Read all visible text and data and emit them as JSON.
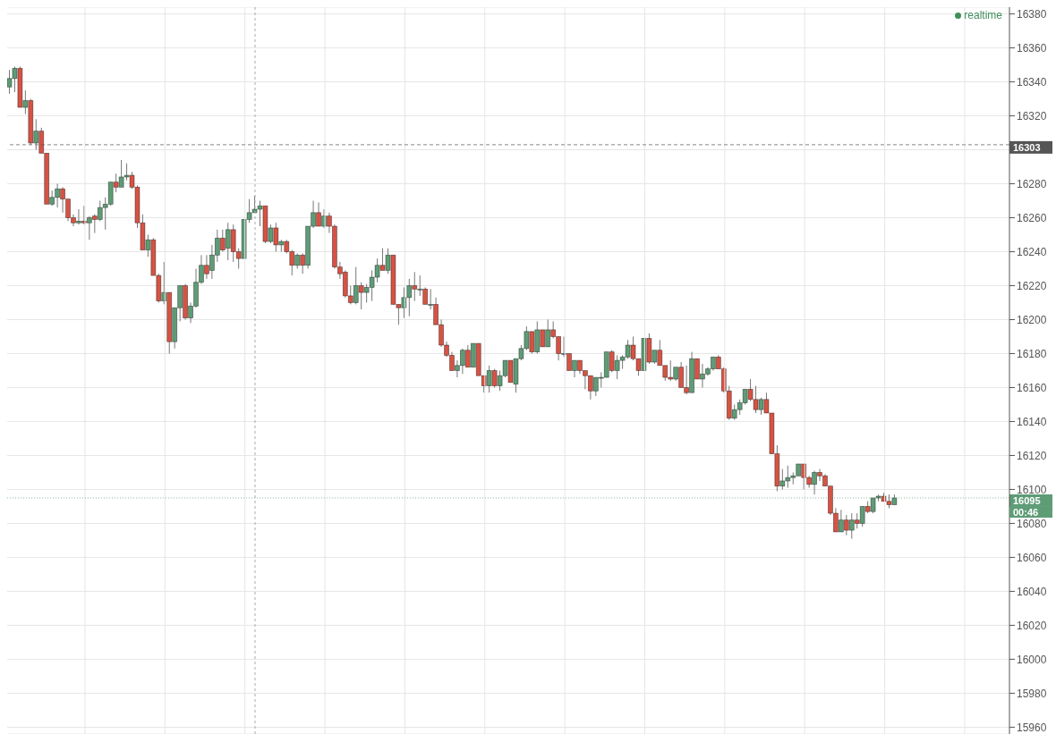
{
  "chart_data": {
    "type": "candlestick",
    "categories": [
      null,
      null,
      null,
      null,
      null,
      null,
      null,
      null,
      null,
      null,
      null,
      null,
      null,
      null,
      null,
      null,
      null,
      null,
      null,
      null,
      null,
      null,
      null,
      null,
      null,
      null,
      null,
      null,
      null,
      null,
      null,
      null,
      null,
      null,
      null,
      null,
      null,
      null,
      null,
      null,
      null,
      null,
      null,
      null,
      null,
      null,
      null,
      null,
      null,
      null,
      null,
      null,
      null,
      null,
      null,
      null,
      null,
      null,
      null,
      null,
      null,
      null,
      null,
      null,
      null,
      null,
      null,
      null,
      null,
      null,
      null,
      null,
      null,
      null,
      null,
      null,
      null,
      null,
      null,
      null,
      null,
      null,
      null,
      null,
      null,
      null,
      null,
      null,
      null,
      null,
      null,
      null,
      null,
      null,
      null,
      null,
      null,
      null,
      null,
      null,
      null,
      null,
      null,
      null,
      null,
      null,
      null,
      null,
      null,
      null,
      null,
      null,
      null,
      null,
      null,
      null,
      null,
      null,
      null,
      null,
      null,
      null,
      null,
      null,
      null,
      null,
      null,
      null,
      null,
      null,
      null,
      null,
      null,
      null,
      null,
      null,
      null,
      null,
      null,
      null,
      null,
      null,
      null,
      null,
      null,
      null,
      null,
      null,
      null,
      null,
      null,
      null,
      null,
      null,
      null,
      null,
      null,
      null,
      null,
      null,
      null,
      null,
      null,
      null,
      null,
      null,
      null,
      null,
      null,
      null,
      null,
      null,
      null,
      null,
      null,
      null,
      null,
      null,
      null,
      null,
      null,
      null,
      null,
      null,
      null,
      null,
      null,
      null
    ],
    "ohlc": [
      [
        16337,
        16347,
        16333,
        16342
      ],
      [
        16342,
        16349,
        16334,
        16348
      ],
      [
        16348,
        16349,
        16325,
        16325
      ],
      [
        16325,
        16335,
        16321,
        16329
      ],
      [
        16329,
        16330,
        16303,
        16304
      ],
      [
        16304,
        16318,
        16300,
        16311
      ],
      [
        16311,
        16313,
        16298,
        16298
      ],
      [
        16298,
        16298,
        16268,
        16268
      ],
      [
        16268,
        16276,
        16267,
        16272
      ],
      [
        16272,
        16280,
        16266,
        16277
      ],
      [
        16277,
        16278,
        16263,
        16271
      ],
      [
        16271,
        16271,
        16258,
        16260
      ],
      [
        16260,
        16262,
        16255,
        16257
      ],
      [
        16257,
        16265,
        16256,
        16258
      ],
      [
        16258,
        16267,
        16256,
        16257
      ],
      [
        16257,
        16261,
        16247,
        16260
      ],
      [
        16261,
        16262,
        16251,
        16259
      ],
      [
        16259,
        16270,
        16258,
        16266
      ],
      [
        16266,
        16272,
        16253,
        16268
      ],
      [
        16268,
        16281,
        16267,
        16281
      ],
      [
        16281,
        16286,
        16275,
        16278
      ],
      [
        16278,
        16294,
        16278,
        16284
      ],
      [
        16284,
        16292,
        16282,
        16285
      ],
      [
        16285,
        16287,
        16277,
        16278
      ],
      [
        16278,
        16279,
        16254,
        16257
      ],
      [
        16257,
        16262,
        16241,
        16241
      ],
      [
        16241,
        16250,
        16237,
        16247
      ],
      [
        16247,
        16248,
        16226,
        16226
      ],
      [
        16226,
        16227,
        16210,
        16211
      ],
      [
        16211,
        16234,
        16209,
        16216
      ],
      [
        16216,
        16216,
        16180,
        16187
      ],
      [
        16187,
        16207,
        16183,
        16207
      ],
      [
        16207,
        16220,
        16199,
        16220
      ],
      [
        16220,
        16221,
        16200,
        16201
      ],
      [
        16201,
        16210,
        16198,
        16208
      ],
      [
        16208,
        16230,
        16207,
        16222
      ],
      [
        16222,
        16238,
        16221,
        16232
      ],
      [
        16232,
        16238,
        16224,
        16227
      ],
      [
        16229,
        16244,
        16224,
        16238
      ],
      [
        16238,
        16253,
        16234,
        16248
      ],
      [
        16248,
        16253,
        16240,
        16241
      ],
      [
        16242,
        16257,
        16235,
        16253
      ],
      [
        16253,
        16256,
        16234,
        16240
      ],
      [
        16240,
        16242,
        16230,
        16236
      ],
      [
        16236,
        16259,
        16236,
        16259
      ],
      [
        16259,
        16271,
        16257,
        16263
      ],
      [
        16263,
        16273,
        16263,
        16265
      ],
      [
        16265,
        16270,
        16255,
        16267
      ],
      [
        16267,
        16267,
        16245,
        16246
      ],
      [
        16246,
        16256,
        16245,
        16254
      ],
      [
        16254,
        16257,
        16240,
        16244
      ],
      [
        16244,
        16247,
        16240,
        16246
      ],
      [
        16246,
        16247,
        16239,
        16240
      ],
      [
        16240,
        16241,
        16226,
        16232
      ],
      [
        16232,
        16239,
        16230,
        16238
      ],
      [
        16238,
        16239,
        16227,
        16232
      ],
      [
        16232,
        16255,
        16230,
        16255
      ],
      [
        16255,
        16270,
        16254,
        16263
      ],
      [
        16263,
        16269,
        16255,
        16255
      ],
      [
        16255,
        16265,
        16254,
        16261
      ],
      [
        16261,
        16263,
        16251,
        16255
      ],
      [
        16255,
        16256,
        16230,
        16231
      ],
      [
        16231,
        16234,
        16224,
        16227
      ],
      [
        16228,
        16229,
        16213,
        16214
      ],
      [
        16214,
        16220,
        16209,
        16210
      ],
      [
        16210,
        16231,
        16209,
        16220
      ],
      [
        16220,
        16222,
        16206,
        16216
      ],
      [
        16216,
        16221,
        16210,
        16219
      ],
      [
        16219,
        16229,
        16211,
        16225
      ],
      [
        16225,
        16236,
        16222,
        16232
      ],
      [
        16232,
        16242,
        16229,
        16229
      ],
      [
        16229,
        16242,
        16227,
        16238
      ],
      [
        16238,
        16238,
        16209,
        16209
      ],
      [
        16209,
        16209,
        16197,
        16207
      ],
      [
        16207,
        16219,
        16201,
        16213
      ],
      [
        16213,
        16224,
        16202,
        16220
      ],
      [
        16220,
        16228,
        16211,
        16218
      ],
      [
        16218,
        16226,
        16214,
        16218
      ],
      [
        16218,
        16219,
        16209,
        16209
      ],
      [
        16209,
        16218,
        16206,
        16209
      ],
      [
        16209,
        16213,
        16197,
        16197
      ],
      [
        16197,
        16200,
        16184,
        16185
      ],
      [
        16185,
        16187,
        16178,
        16179
      ],
      [
        16179,
        16181,
        16170,
        16170
      ],
      [
        16170,
        16176,
        16166,
        16173
      ],
      [
        16173,
        16183,
        16168,
        16182
      ],
      [
        16182,
        16185,
        16172,
        16172
      ],
      [
        16172,
        16186,
        16172,
        16186
      ],
      [
        16186,
        16186,
        16167,
        16167
      ],
      [
        16167,
        16167,
        16157,
        16161
      ],
      [
        16161,
        16173,
        16157,
        16170
      ],
      [
        16170,
        16171,
        16160,
        16161
      ],
      [
        16161,
        16170,
        16158,
        16167
      ],
      [
        16167,
        16176,
        16166,
        16176
      ],
      [
        16176,
        16176,
        16163,
        16163
      ],
      [
        16162,
        16177,
        16157,
        16177
      ],
      [
        16177,
        16185,
        16176,
        16183
      ],
      [
        16183,
        16196,
        16182,
        16193
      ],
      [
        16193,
        16193,
        16180,
        16181
      ],
      [
        16181,
        16199,
        16180,
        16194
      ],
      [
        16194,
        16194,
        16184,
        16184
      ],
      [
        16184,
        16200,
        16184,
        16194
      ],
      [
        16194,
        16199,
        16189,
        16190
      ],
      [
        16190,
        16190,
        16176,
        16180
      ],
      [
        16180,
        16190,
        16178,
        16180
      ],
      [
        16180,
        16180,
        16170,
        16170
      ],
      [
        16170,
        16176,
        16166,
        16176
      ],
      [
        16176,
        16176,
        16168,
        16170
      ],
      [
        16170,
        16170,
        16159,
        16167
      ],
      [
        16167,
        16167,
        16153,
        16158
      ],
      [
        16158,
        16166,
        16155,
        16166
      ],
      [
        16166,
        16169,
        16160,
        16166
      ],
      [
        16166,
        16181,
        16166,
        16181
      ],
      [
        16181,
        16182,
        16169,
        16170
      ],
      [
        16170,
        16179,
        16165,
        16176
      ],
      [
        16176,
        16179,
        16171,
        16178
      ],
      [
        16178,
        16188,
        16177,
        16185
      ],
      [
        16185,
        16190,
        16176,
        16177
      ],
      [
        16177,
        16177,
        16167,
        16170
      ],
      [
        16170,
        16189,
        16170,
        16189
      ],
      [
        16189,
        16192,
        16174,
        16175
      ],
      [
        16175,
        16182,
        16174,
        16182
      ],
      [
        16182,
        16188,
        16173,
        16173
      ],
      [
        16173,
        16173,
        16164,
        16166
      ],
      [
        16166,
        16176,
        16164,
        16165
      ],
      [
        16165,
        16172,
        16164,
        16172
      ],
      [
        16172,
        16175,
        16160,
        16160
      ],
      [
        16160,
        16173,
        16156,
        16157
      ],
      [
        16157,
        16181,
        16157,
        16177
      ],
      [
        16177,
        16177,
        16165,
        16165
      ],
      [
        16165,
        16174,
        16160,
        16168
      ],
      [
        16168,
        16172,
        16167,
        16171
      ],
      [
        16171,
        16178,
        16170,
        16178
      ],
      [
        16178,
        16179,
        16171,
        16171
      ],
      [
        16171,
        16172,
        16157,
        16158
      ],
      [
        16158,
        16161,
        16141,
        16142
      ],
      [
        16142,
        16150,
        16141,
        16147
      ],
      [
        16147,
        16153,
        16144,
        16151
      ],
      [
        16151,
        16159,
        16150,
        16159
      ],
      [
        16159,
        16165,
        16152,
        16153
      ],
      [
        16153,
        16161,
        16145,
        16147
      ],
      [
        16147,
        16154,
        16144,
        16153
      ],
      [
        16153,
        16157,
        16145,
        16145
      ],
      [
        16145,
        16145,
        16121,
        16121
      ],
      [
        16121,
        16126,
        16099,
        16102
      ],
      [
        16102,
        16112,
        16100,
        16105
      ],
      [
        16105,
        16114,
        16101,
        16107
      ],
      [
        16107,
        16110,
        16103,
        16108
      ],
      [
        16108,
        16115,
        16108,
        16115
      ],
      [
        16115,
        16115,
        16100,
        16107
      ],
      [
        16107,
        16108,
        16101,
        16103
      ],
      [
        16103,
        16111,
        16097,
        16110
      ],
      [
        16110,
        16112,
        16105,
        16108
      ],
      [
        16108,
        16109,
        16102,
        16102
      ],
      [
        16102,
        16102,
        16085,
        16086
      ],
      [
        16086,
        16089,
        16075,
        16075
      ],
      [
        16075,
        16088,
        16075,
        16082
      ],
      [
        16082,
        16085,
        16073,
        16076
      ],
      [
        16076,
        16086,
        16071,
        16082
      ],
      [
        16082,
        16086,
        16077,
        16080
      ],
      [
        16080,
        16090,
        16078,
        16090
      ],
      [
        16090,
        16093,
        16086,
        16087
      ],
      [
        16087,
        16095,
        16086,
        16095
      ],
      [
        16095,
        16097,
        16093,
        16096
      ],
      [
        16096,
        16098,
        16093,
        16093
      ],
      [
        16093,
        16097,
        16089,
        16091
      ],
      [
        16091,
        16097,
        16091,
        16095
      ],
      null,
      null,
      null,
      null,
      null,
      null,
      null,
      null,
      null,
      null,
      null,
      null,
      null,
      null,
      null,
      null,
      null,
      null,
      null,
      null,
      null
    ],
    "colors": [
      "#5e9c76",
      "#5e9c76",
      "#d65344",
      "#5e9c76",
      "#d65344",
      "#5e9c76",
      "#d65344",
      "#d65344",
      "#5e9c76",
      "#5e9c76",
      "#d65344",
      "#d65344",
      "#d65344",
      "#5e9c76",
      "#d65344",
      "#5e9c76",
      "#d65344",
      "#5e9c76",
      "#5e9c76",
      "#5e9c76",
      "#d65344",
      "#5e9c76",
      "#5e9c76",
      "#d65344",
      "#d65344",
      "#d65344",
      "#5e9c76",
      "#d65344",
      "#d65344",
      "#5e9c76",
      "#d65344",
      "#5e9c76",
      "#5e9c76",
      "#d65344",
      "#5e9c76",
      "#5e9c76",
      "#5e9c76",
      "#d65344",
      "#5e9c76",
      "#5e9c76",
      "#d65344",
      "#5e9c76",
      "#d65344",
      "#d65344",
      "#5e9c76",
      "#5e9c76",
      "#5e9c76",
      "#5e9c76",
      "#d65344",
      "#5e9c76",
      "#d65344",
      "#5e9c76",
      "#d65344",
      "#d65344",
      "#5e9c76",
      "#d65344",
      "#5e9c76",
      "#5e9c76",
      "#d65344",
      "#5e9c76",
      "#d65344",
      "#d65344",
      "#d65344",
      "#d65344",
      "#d65344",
      "#5e9c76",
      "#d65344",
      "#5e9c76",
      "#5e9c76",
      "#5e9c76",
      "#d65344",
      "#5e9c76",
      "#d65344",
      "#d65344",
      "#5e9c76",
      "#5e9c76",
      "#d65344",
      "#5e9c76",
      "#d65344",
      "#5e9c76",
      "#d65344",
      "#d65344",
      "#d65344",
      "#d65344",
      "#5e9c76",
      "#5e9c76",
      "#d65344",
      "#5e9c76",
      "#d65344",
      "#d65344",
      "#5e9c76",
      "#d65344",
      "#5e9c76",
      "#5e9c76",
      "#d65344",
      "#5e9c76",
      "#5e9c76",
      "#5e9c76",
      "#d65344",
      "#5e9c76",
      "#d65344",
      "#5e9c76",
      "#d65344",
      "#d65344",
      "#5e9c76",
      "#d65344",
      "#5e9c76",
      "#d65344",
      "#d65344",
      "#d65344",
      "#5e9c76",
      "#5e9c76",
      "#5e9c76",
      "#d65344",
      "#5e9c76",
      "#5e9c76",
      "#5e9c76",
      "#d65344",
      "#d65344",
      "#5e9c76",
      "#d65344",
      "#5e9c76",
      "#d65344",
      "#d65344",
      "#d65344",
      "#5e9c76",
      "#d65344",
      "#d65344",
      "#5e9c76",
      "#d65344",
      "#5e9c76",
      "#5e9c76",
      "#5e9c76",
      "#d65344",
      "#d65344",
      "#d65344",
      "#5e9c76",
      "#5e9c76",
      "#5e9c76",
      "#d65344",
      "#d65344",
      "#5e9c76",
      "#d65344",
      "#d65344",
      "#d65344",
      "#5e9c76",
      "#5e9c76",
      "#5e9c76",
      "#5e9c76",
      "#d65344",
      "#d65344",
      "#5e9c76",
      "#d65344",
      "#d65344",
      "#d65344",
      "#d65344",
      "#5e9c76",
      "#d65344",
      "#5e9c76",
      "#d65344",
      "#5e9c76",
      "#d65344",
      "#5e9c76",
      "#5e9c76",
      "#d65344",
      "#d65344",
      "#5e9c76",
      null,
      null,
      null,
      null,
      null,
      null,
      null,
      null,
      null,
      null,
      null,
      null,
      null,
      null,
      null,
      null,
      null,
      null,
      null,
      null,
      null
    ],
    "ylim": [
      15956,
      16384
    ],
    "yticks": [
      15960,
      15980,
      16000,
      16020,
      16040,
      16060,
      16080,
      16100,
      16120,
      16140,
      16160,
      16180,
      16200,
      16220,
      16240,
      16260,
      16280,
      {
        "value": 16300,
        "label": null
      },
      16320,
      16340,
      16360,
      16380
    ],
    "grid": true,
    "ref_lines": [
      {
        "axis": "y",
        "value": 16303,
        "label": "16303",
        "color": "#555555",
        "line_style": "dashed"
      },
      {
        "axis": "y",
        "value": 16095,
        "label": "16095",
        "color": "#5e9c76",
        "line_style": "dotted"
      }
    ],
    "annotations": [
      "realtime",
      "00:46"
    ]
  }
}
